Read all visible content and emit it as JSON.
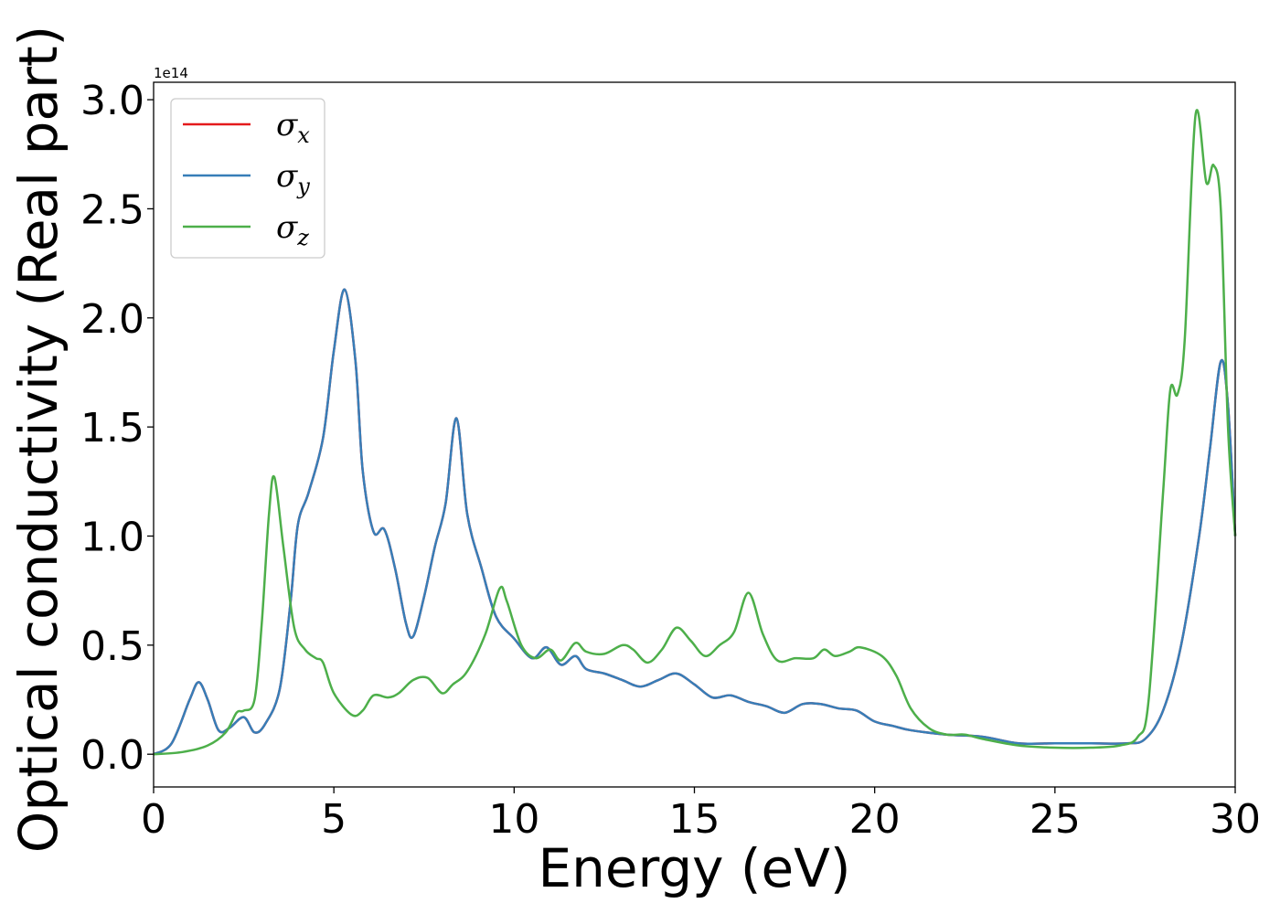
{
  "chart_data": {
    "type": "line",
    "xlabel": "Energy (eV)",
    "ylabel": "Optical conductivity (Real part)",
    "y_offset_label": "1e14",
    "xlim": [
      0,
      30
    ],
    "ylim": [
      -0.15,
      3.08
    ],
    "x_ticks": [
      0,
      5,
      10,
      15,
      20,
      25,
      30
    ],
    "x_tick_labels": [
      "0",
      "5",
      "10",
      "15",
      "20",
      "25",
      "30"
    ],
    "y_ticks": [
      0.0,
      0.5,
      1.0,
      1.5,
      2.0,
      2.5,
      3.0
    ],
    "y_tick_labels": [
      "0.0",
      "0.5",
      "1.0",
      "1.5",
      "2.0",
      "2.5",
      "3.0"
    ],
    "grid": false,
    "legend_position": "top-left",
    "series": [
      {
        "name": "σx",
        "symbol": "σ",
        "subscript": "x",
        "color": "#e41a1c",
        "x": [
          0,
          0.5,
          1.0,
          1.25,
          1.5,
          1.8,
          2.1,
          2.5,
          2.8,
          3.1,
          3.5,
          3.8,
          4.0,
          4.3,
          4.7,
          5.0,
          5.3,
          5.6,
          5.8,
          6.1,
          6.4,
          6.7,
          7.0,
          7.2,
          7.5,
          7.8,
          8.1,
          8.4,
          8.7,
          9.1,
          9.5,
          10.0,
          10.5,
          10.9,
          11.3,
          11.7,
          12.0,
          12.5,
          13.0,
          13.5,
          14.0,
          14.5,
          15.0,
          15.5,
          16.0,
          16.5,
          17.0,
          17.5,
          18.0,
          18.5,
          19.0,
          19.5,
          20.0,
          20.5,
          21.0,
          22.0,
          23.0,
          24.0,
          25.0,
          26.0,
          27.0,
          27.5,
          28.0,
          28.5,
          29.0,
          29.3,
          29.6,
          29.8,
          30.0
        ],
        "y": [
          0.0,
          0.05,
          0.25,
          0.33,
          0.25,
          0.11,
          0.12,
          0.17,
          0.1,
          0.14,
          0.3,
          0.7,
          1.05,
          1.2,
          1.45,
          1.85,
          2.13,
          1.8,
          1.3,
          1.02,
          1.03,
          0.85,
          0.6,
          0.54,
          0.72,
          0.95,
          1.15,
          1.54,
          1.1,
          0.85,
          0.63,
          0.53,
          0.44,
          0.49,
          0.41,
          0.45,
          0.39,
          0.37,
          0.34,
          0.31,
          0.34,
          0.37,
          0.32,
          0.26,
          0.27,
          0.24,
          0.22,
          0.19,
          0.23,
          0.23,
          0.21,
          0.2,
          0.15,
          0.13,
          0.11,
          0.09,
          0.08,
          0.05,
          0.05,
          0.05,
          0.05,
          0.07,
          0.2,
          0.5,
          1.0,
          1.4,
          1.8,
          1.6,
          1.0
        ]
      },
      {
        "name": "σy",
        "symbol": "σ",
        "subscript": "y",
        "color": "#377eb8",
        "x": [
          0,
          0.5,
          1.0,
          1.25,
          1.5,
          1.8,
          2.1,
          2.5,
          2.8,
          3.1,
          3.5,
          3.8,
          4.0,
          4.3,
          4.7,
          5.0,
          5.3,
          5.6,
          5.8,
          6.1,
          6.4,
          6.7,
          7.0,
          7.2,
          7.5,
          7.8,
          8.1,
          8.4,
          8.7,
          9.1,
          9.5,
          10.0,
          10.5,
          10.9,
          11.3,
          11.7,
          12.0,
          12.5,
          13.0,
          13.5,
          14.0,
          14.5,
          15.0,
          15.5,
          16.0,
          16.5,
          17.0,
          17.5,
          18.0,
          18.5,
          19.0,
          19.5,
          20.0,
          20.5,
          21.0,
          22.0,
          23.0,
          24.0,
          25.0,
          26.0,
          27.0,
          27.5,
          28.0,
          28.5,
          29.0,
          29.3,
          29.6,
          29.8,
          30.0
        ],
        "y": [
          0.0,
          0.05,
          0.25,
          0.33,
          0.25,
          0.11,
          0.12,
          0.17,
          0.1,
          0.14,
          0.3,
          0.7,
          1.05,
          1.2,
          1.45,
          1.85,
          2.13,
          1.8,
          1.3,
          1.02,
          1.03,
          0.85,
          0.6,
          0.54,
          0.72,
          0.95,
          1.15,
          1.54,
          1.1,
          0.85,
          0.63,
          0.53,
          0.44,
          0.49,
          0.41,
          0.45,
          0.39,
          0.37,
          0.34,
          0.31,
          0.34,
          0.37,
          0.32,
          0.26,
          0.27,
          0.24,
          0.22,
          0.19,
          0.23,
          0.23,
          0.21,
          0.2,
          0.15,
          0.13,
          0.11,
          0.09,
          0.08,
          0.05,
          0.05,
          0.05,
          0.05,
          0.07,
          0.2,
          0.5,
          1.0,
          1.4,
          1.8,
          1.6,
          1.0
        ]
      },
      {
        "name": "σz",
        "symbol": "σ",
        "subscript": "z",
        "color": "#4daf4a",
        "x": [
          0,
          0.8,
          1.5,
          2.0,
          2.3,
          2.5,
          2.8,
          3.0,
          3.2,
          3.35,
          3.6,
          3.9,
          4.2,
          4.5,
          4.7,
          5.0,
          5.5,
          5.8,
          6.1,
          6.5,
          6.8,
          7.2,
          7.6,
          8.0,
          8.3,
          8.7,
          9.2,
          9.6,
          9.8,
          10.2,
          10.6,
          11.0,
          11.3,
          11.7,
          12.0,
          12.5,
          13.0,
          13.3,
          13.7,
          14.1,
          14.5,
          14.9,
          15.3,
          15.7,
          16.1,
          16.5,
          16.9,
          17.3,
          17.8,
          18.3,
          18.6,
          18.9,
          19.3,
          19.6,
          20.2,
          20.6,
          21.0,
          21.5,
          22.0,
          22.5,
          23.0,
          24.0,
          25.0,
          26.0,
          26.8,
          27.3,
          27.6,
          28.0,
          28.2,
          28.4,
          28.6,
          28.9,
          29.2,
          29.4,
          29.6,
          29.8,
          30.0
        ],
        "y": [
          0.0,
          0.01,
          0.04,
          0.1,
          0.19,
          0.2,
          0.25,
          0.6,
          1.1,
          1.27,
          0.95,
          0.58,
          0.48,
          0.44,
          0.42,
          0.28,
          0.18,
          0.2,
          0.27,
          0.26,
          0.28,
          0.34,
          0.35,
          0.28,
          0.32,
          0.38,
          0.55,
          0.76,
          0.7,
          0.5,
          0.44,
          0.48,
          0.43,
          0.51,
          0.47,
          0.46,
          0.5,
          0.48,
          0.42,
          0.48,
          0.58,
          0.52,
          0.45,
          0.5,
          0.56,
          0.74,
          0.55,
          0.43,
          0.44,
          0.44,
          0.48,
          0.45,
          0.47,
          0.49,
          0.45,
          0.36,
          0.21,
          0.12,
          0.09,
          0.09,
          0.07,
          0.04,
          0.03,
          0.03,
          0.04,
          0.08,
          0.25,
          1.2,
          1.67,
          1.65,
          1.9,
          2.93,
          2.62,
          2.7,
          2.5,
          1.5,
          1.0
        ]
      }
    ]
  }
}
